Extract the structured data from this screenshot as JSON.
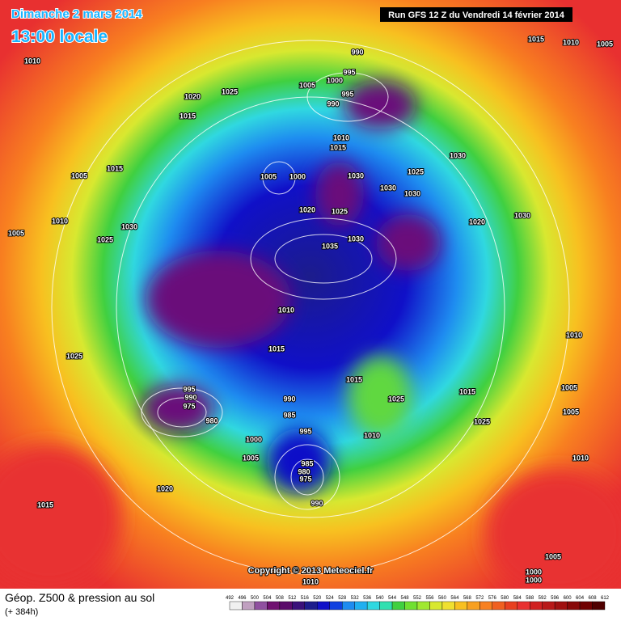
{
  "header": {
    "date": "Dimanche 2 mars 2014",
    "time": "13:00 locale",
    "run": "Run GFS 12 Z du Vendredi 14 février 2014"
  },
  "pressure_labels": [
    "1010",
    "990",
    "995",
    "1005",
    "1000",
    "995",
    "990",
    "1015",
    "1010",
    "1005",
    "1025",
    "1020",
    "1015",
    "1010",
    "1015",
    "1030",
    "1025",
    "1005",
    "1015",
    "1005",
    "1000",
    "1030",
    "1030",
    "1030",
    "1020",
    "1025",
    "1020",
    "1030",
    "1010",
    "1030",
    "1005",
    "1025",
    "1030",
    "1035",
    "1010",
    "1010",
    "1015",
    "1025",
    "1015",
    "1025",
    "1015",
    "1005",
    "995",
    "990",
    "975",
    "980",
    "990",
    "985",
    "995",
    "1010",
    "1025",
    "1005",
    "1000",
    "1005",
    "985",
    "980",
    "975",
    "990",
    "1010",
    "1020",
    "1015",
    "1005",
    "1000",
    "1000",
    "1010"
  ],
  "copyright": "Copyright © 2013 Meteociel.fr",
  "footer": {
    "title": "Géop. Z500 & pression au sol",
    "subtitle": "(+ 384h)"
  },
  "colorbar": {
    "ticks": [
      492,
      496,
      500,
      504,
      508,
      512,
      516,
      520,
      524,
      528,
      532,
      536,
      540,
      544,
      548,
      552,
      556,
      560,
      564,
      568,
      572,
      576,
      580,
      584,
      588,
      592,
      596,
      600,
      604,
      608,
      612
    ]
  }
}
